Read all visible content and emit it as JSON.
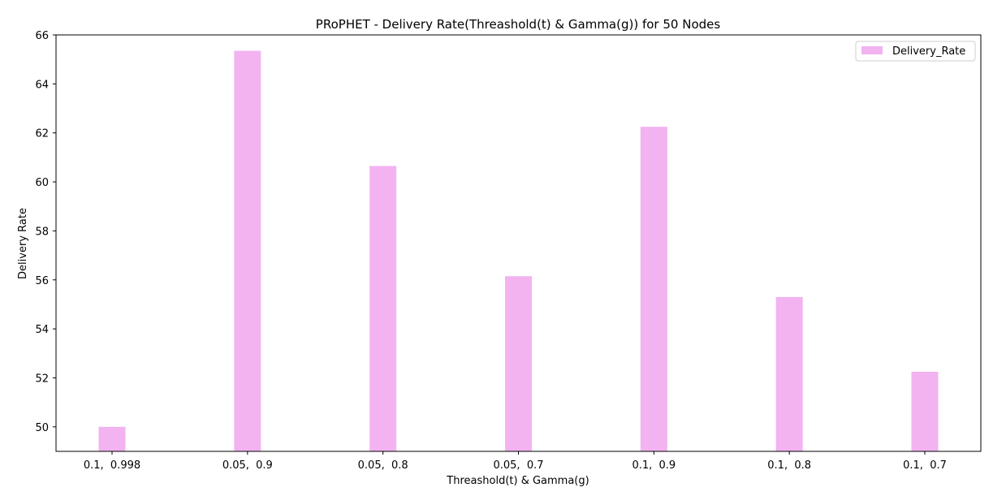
{
  "chart_data": {
    "type": "bar",
    "title": "PRoPHET - Delivery Rate(Threashold(t) & Gamma(g)) for 50 Nodes",
    "xlabel": "Threashold(t) & Gamma(g)",
    "ylabel": "Delivery Rate",
    "categories": [
      "0.1,  0.998",
      "0.05,  0.9",
      "0.05,  0.8",
      "0.05,  0.7",
      "0.1,  0.9",
      "0.1,  0.8",
      "0.1,  0.7"
    ],
    "series": [
      {
        "name": "Delivery_Rate",
        "values": [
          50.0,
          65.35,
          60.65,
          56.15,
          62.25,
          55.3,
          52.25
        ],
        "color": "#f2b3f0"
      }
    ],
    "ylim": [
      49,
      66
    ],
    "yticks": [
      50,
      52,
      54,
      56,
      58,
      60,
      62,
      64,
      66
    ],
    "grid": false,
    "legend_position": "top-right"
  }
}
